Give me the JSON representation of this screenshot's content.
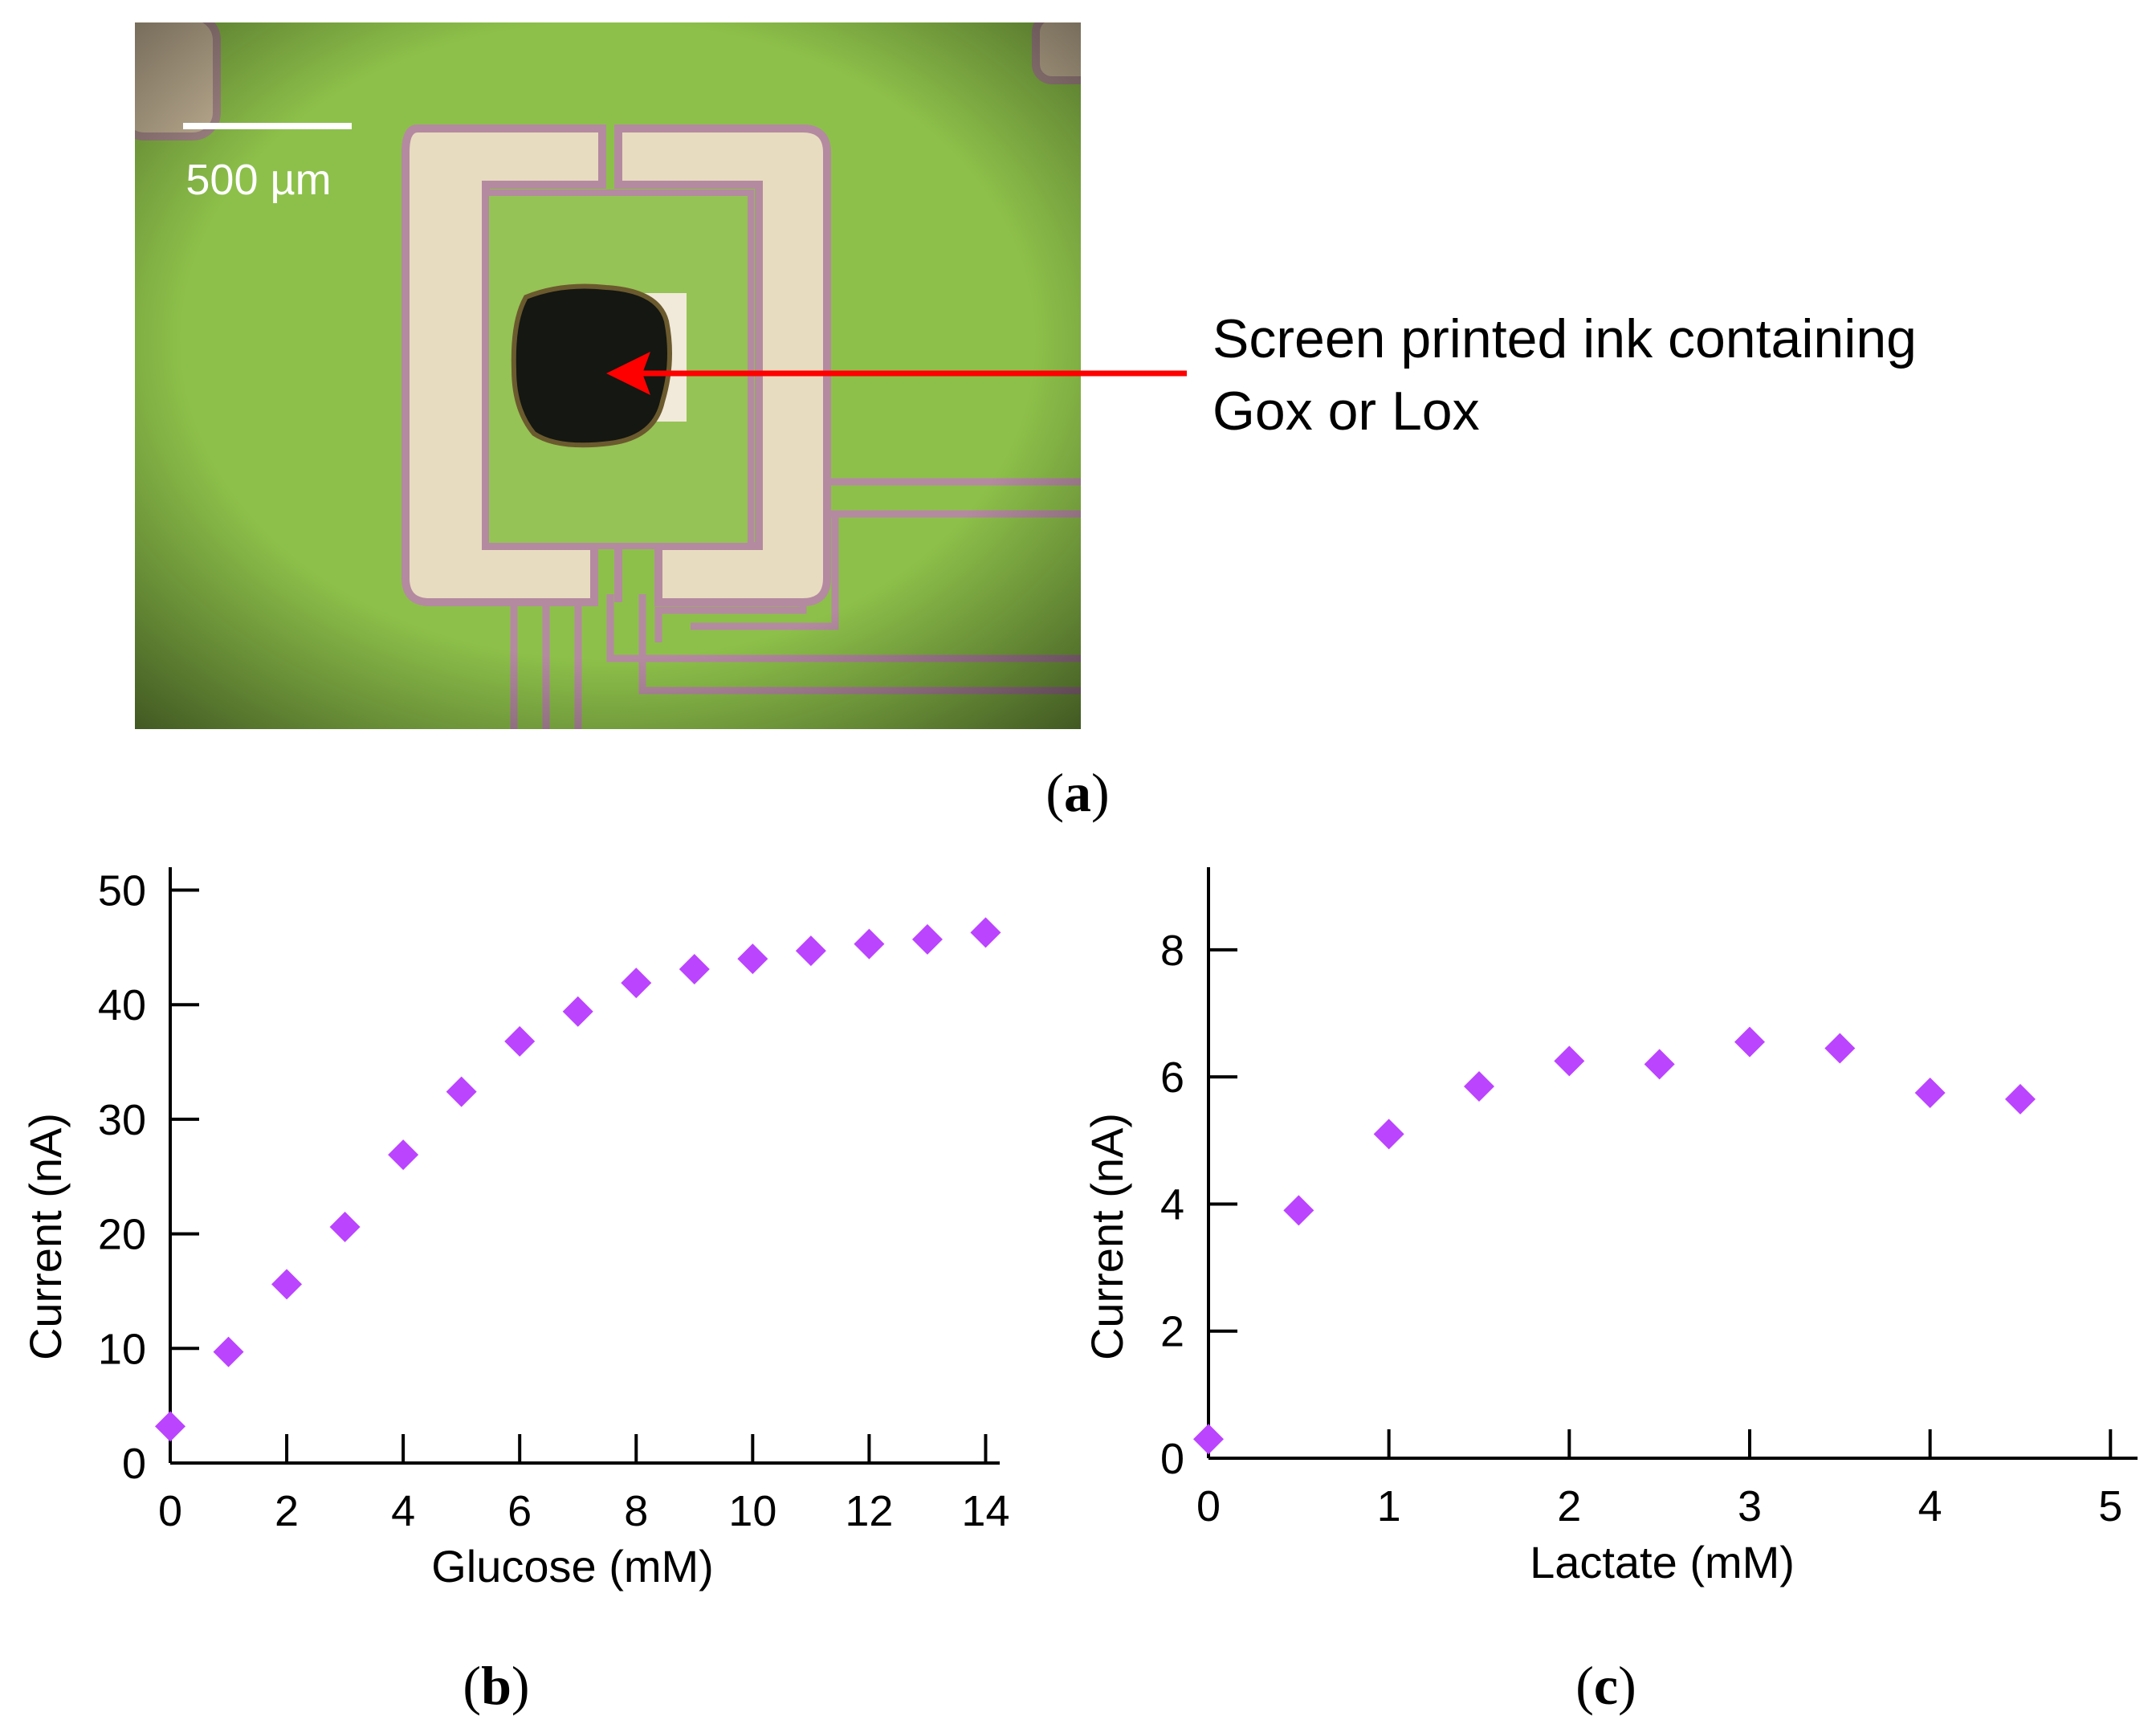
{
  "micrograph": {
    "scale_bar_label": "500 µm",
    "annotation_line1": "Screen printed ink containing",
    "annotation_line2": "Gox or Lox",
    "arrow_color": "#ff0000",
    "background_color": "#8dc04a",
    "electrode_color": "#e8dcc0"
  },
  "labels": {
    "panel_a": "(a)",
    "panel_b": "(b)",
    "panel_c": "(c)",
    "panel_a_letter": "a",
    "panel_b_letter": "b",
    "panel_c_letter": "c"
  },
  "chart_data": [
    {
      "type": "scatter",
      "panel": "(b)",
      "marker": "diamond",
      "color": "#bb44ff",
      "xlabel": "Glucose (mM)",
      "ylabel": "Current (nA)",
      "xlim": [
        0,
        15
      ],
      "ylim": [
        0,
        52
      ],
      "xticks": [
        "0",
        "2",
        "4",
        "6",
        "8",
        "10",
        "12",
        "14"
      ],
      "yticks": [
        "0",
        "10",
        "20",
        "30",
        "40",
        "50"
      ],
      "x": [
        0,
        1,
        2,
        3,
        4,
        5,
        6,
        7,
        8,
        9,
        10,
        11,
        12,
        13,
        14
      ],
      "y": [
        3.2,
        9.7,
        15.6,
        20.6,
        26.9,
        32.4,
        36.8,
        39.4,
        41.9,
        43.1,
        44.0,
        44.7,
        45.3,
        45.7,
        46.3
      ]
    },
    {
      "type": "scatter",
      "panel": "(c)",
      "marker": "diamond",
      "color": "#bb44ff",
      "xlabel": "Lactate (mM)",
      "ylabel": "Current (nA)",
      "xlim": [
        0,
        5.15
      ],
      "ylim": [
        0,
        9.3
      ],
      "xticks": [
        "0",
        "1",
        "2",
        "3",
        "4",
        "5"
      ],
      "yticks": [
        "0",
        "2",
        "4",
        "6",
        "8"
      ],
      "x": [
        0,
        0.5,
        1,
        1.5,
        2,
        2.5,
        3,
        3.5,
        4,
        4.5
      ],
      "y": [
        0.3,
        3.9,
        5.1,
        5.85,
        6.25,
        6.2,
        6.55,
        6.45,
        5.75,
        5.65
      ]
    }
  ]
}
